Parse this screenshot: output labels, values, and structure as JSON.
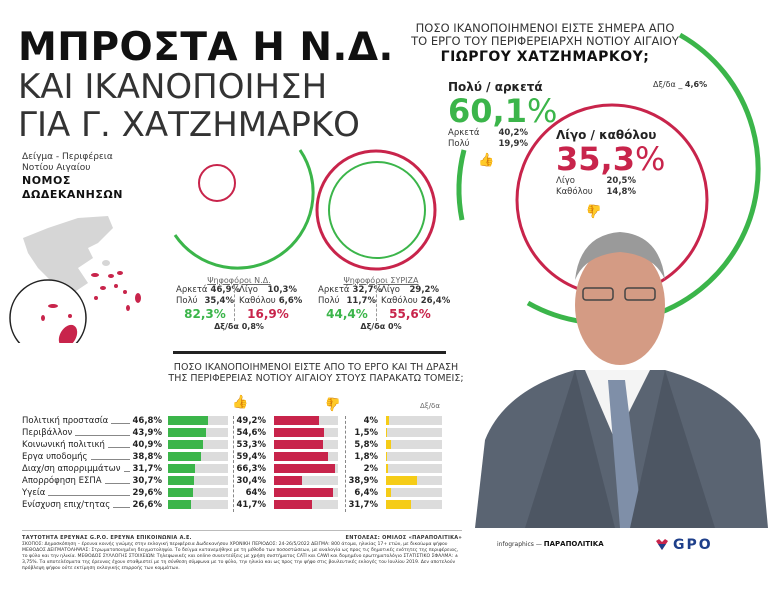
{
  "title": {
    "line1": "ΜΠΡΟΣΤΑ Η Ν.Δ.",
    "line2": "ΚΑΙ ΙΚΑΝΟΠΟΙΗΣΗ",
    "line3": "ΓΙΑ Γ. ΧΑΤΖΗΜΑΡΚΟ"
  },
  "sample": {
    "line1": "Δείγμα - Περιφέρεια",
    "line2": "Νοτίου Αιγαίου",
    "bold1": "ΝΟΜΟΣ",
    "bold2": "ΔΩΔΕΚΑΝΗΣΩΝ"
  },
  "main_question": {
    "line1": "ΠΟΣΟ ΙΚΑΝΟΠΟΙΗΜΕΝΟΙ ΕΙΣΤΕ ΣΗΜΕΡΑ ΑΠΟ",
    "line2": "ΤΟ ΕΡΓΟ ΤΟΥ ΠΕΡΙΦΕΡΕΙΑΡΧΗ ΝΟΤΙΟΥ ΑΙΓΑΙΟΥ",
    "line3": "ΓΙΩΡΓΟΥ ΧΑΤΖΗΜΑΡΚΟΥ;"
  },
  "chart_data": [
    {
      "type": "pie",
      "title": "ΠΟΣΟ ΙΚΑΝΟΠΟΙΗΜΕΝΟΙ ΕΙΣΤΕ ΣΗΜΕΡΑ ΑΠΟ ΤΟ ΕΡΓΟ ΤΟΥ ΠΕΡΙΦΕΡΕΙΑΡΧΗ ΝΟΤΙΟΥ ΑΙΓΑΙΟΥ ΓΙΩΡΓΟΥ ΧΑΤΖΗΜΑΡΚΟΥ;",
      "positive": {
        "label": "Πολύ / αρκετά",
        "value": "60,1",
        "unit": "%",
        "breakdown": [
          {
            "label": "Αρκετά",
            "value": "40,2%"
          },
          {
            "label": "Πολύ",
            "value": "19,9%"
          }
        ]
      },
      "negative": {
        "label": "Λίγο / καθόλου",
        "value": "35,3",
        "unit": "%",
        "breakdown": [
          {
            "label": "Λίγο",
            "value": "20,5%"
          },
          {
            "label": "Καθόλου",
            "value": "14,8%"
          }
        ]
      },
      "dk": {
        "label": "Δξ/δα",
        "value": "4,6%"
      }
    },
    {
      "type": "pie",
      "title": "Ψηφοφόροι Ν.Δ.",
      "positive": {
        "total": "82,3%",
        "breakdown": [
          {
            "label": "Αρκετά",
            "value": "46,9%"
          },
          {
            "label": "Πολύ",
            "value": "35,4%"
          }
        ]
      },
      "negative": {
        "total": "16,9%",
        "breakdown": [
          {
            "label": "Λίγο",
            "value": "10,3%"
          },
          {
            "label": "Καθόλου",
            "value": "6,6%"
          }
        ]
      },
      "dk": "Δξ/δα 0,8%"
    },
    {
      "type": "pie",
      "title": "Ψηφοφόροι ΣΥΡΙΖΑ",
      "positive": {
        "total": "44,4%",
        "breakdown": [
          {
            "label": "Αρκετά",
            "value": "32,7%"
          },
          {
            "label": "Πολύ",
            "value": "11,7%"
          }
        ]
      },
      "negative": {
        "total": "55,6%",
        "breakdown": [
          {
            "label": "Λίγο",
            "value": "29,2%"
          },
          {
            "label": "Καθόλου",
            "value": "26,4%"
          }
        ]
      },
      "dk": "Δξ/δα 0%"
    },
    {
      "type": "bar",
      "title": "ΠΟΣΟ ΙΚΑΝΟΠΟΙΗΜΕΝΟΙ ΕΙΣΤΕ ΑΠΟ ΤΟ ΕΡΓΟ ΚΑΙ ΤΗ ΔΡΑΣΗ ΤΗΣ ΠΕΡΙΦΕΡΕΙΑΣ ΝΟΤΙΟΥ ΑΙΓΑΙΟΥ ΣΤΟΥΣ ΠΑΡΑΚΑΤΩ ΤΟΜΕΙΣ;",
      "categories": [
        "Πολιτική προστασία",
        "Περιβάλλον",
        "Κοινωνική πολιτική",
        "Εργα υποδομής",
        "Διαχ/ση απορριμμάτων",
        "Απορρόφηση ΕΣΠΑ",
        "Υγεία",
        "Ενίσχυση επιχ/τητας"
      ],
      "series": [
        {
          "name": "Ικανοποιημένοι",
          "color": "#3bb54a",
          "values": [
            46.8,
            43.9,
            40.9,
            38.8,
            31.7,
            30.7,
            29.6,
            26.6
          ],
          "labels": [
            "46,8%",
            "43,9%",
            "40,9%",
            "38,8%",
            "31,7%",
            "30,7%",
            "29,6%",
            "26,6%"
          ]
        },
        {
          "name": "Μη ικανοποιημένοι",
          "color": "#c8244b",
          "values": [
            49.2,
            54.6,
            53.3,
            59.4,
            66.3,
            30.4,
            64,
            41.7
          ],
          "labels": [
            "49,2%",
            "54,6%",
            "53,3%",
            "59,4%",
            "66,3%",
            "30,4%",
            "64%",
            "41,7%"
          ]
        },
        {
          "name": "Δξ/δα",
          "color": "#f5cc17",
          "values": [
            4,
            1.5,
            5.8,
            1.8,
            2,
            38.9,
            6.4,
            31.7
          ],
          "labels": [
            "4%",
            "1,5%",
            "5,8%",
            "1,8%",
            "2%",
            "38,9%",
            "6,4%",
            "31,7%"
          ]
        }
      ],
      "ylim": [
        0,
        70
      ],
      "dk_header": "Δξ/δα"
    }
  ],
  "footer": {
    "identity": "ΤΑΥΤΟΤΗΤΑ ΕΡΕΥΝΑΣ G.P.O. ΕΡΕΥΝΑ ΕΠΙΚΟΙΝΩΝΙΑ Α.Ε.",
    "client": "ΕΝΤΟΛΕΑΣ: ΟΜΙΛΟΣ «ΠΑΡΑΠΟΛΙΤΙΚΑ»",
    "body": "ΣΚΟΠΟΣ: Δημοσκόπηση – έρευνα κοινής γνώμης στην εκλογική περιφέρεια Δωδεκανήσου ΧΡΟΝΙΚΗ ΠΕΡΙΟΔΟΣ: 24-26/5/2022 ΔΕΙΓΜΑ: 800 άτομα, ηλικίας 17+ ετών, με δικαίωμα ψήφου ΜΕΘΟΔΟΣ ΔΕΙΓΜΑΤΟΛΗΨΙΑΣ: Στρωματοποιημένη δειγματοληψία. Το δείγμα κατανεμήθηκε με τη μέθοδο των ποσοστώσεων, με αναλογία ως προς τις δημοτικές ενότητες της περιφέρειας, το φύλο και την ηλικία. ΜΕΘΟΔΟΣ ΣΥΛΛΟΓΗΣ ΣΤΟΙΧΕΙΩΝ: Τηλεφωνικές και online συνεντεύξεις με χρήση συστήματος CATI και CAWI και δομημένο ερωτηματολόγιο ΣΤΑΤΙΣΤΙΚΟ ΣΦΑΛΜΑ: ± 3,75%. Τα αποτελέσματα της έρευνας έχουν σταθμιστεί με τη σύνθεση σύμφωνα με το φύλο, την ηλικία και ως προς την ψήφο στις βουλευτικές εκλογές του Ιουλίου 2019. Δεν αποτελούν πρόβλεψη ψήφου ούτε εκτίμηση εκλογικής επιρροής των κομμάτων.",
    "infographics": "infographics —",
    "publication": "ΠΑΡΑΠΟΛΙΤΙΚΑ",
    "logo": "GPO"
  },
  "colors": {
    "green": "#3bb54a",
    "red": "#c8244b",
    "yellow": "#f5cc17",
    "grey": "#dcdcdc"
  }
}
